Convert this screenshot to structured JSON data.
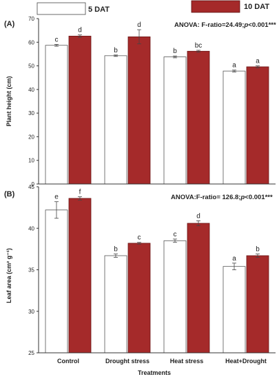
{
  "legend": {
    "items": [
      {
        "label": "5 DAT",
        "color": "#ffffff"
      },
      {
        "label": "10 DAT",
        "color": "#a52a2a"
      }
    ]
  },
  "xlabel": "Treatments",
  "categories": [
    "Control",
    "Drought stress",
    "Heat stress",
    "Heat+Drought"
  ],
  "chart_data": [
    {
      "type": "bar",
      "panel_label": "(A)",
      "ylabel": "Plant height (cm)",
      "ylim": [
        0,
        70
      ],
      "yticks": [
        0,
        10,
        20,
        30,
        40,
        50,
        60,
        70
      ],
      "annotation_prefix": "ANOVA: F-ratio=24.49;",
      "annotation_p": "p",
      "annotation_suffix": "<0.001***",
      "categories": [
        "Control",
        "Drought stress",
        "Heat stress",
        "Heat+Drought"
      ],
      "series": [
        {
          "name": "5 DAT",
          "color": "#ffffff",
          "values": [
            58.7,
            54.3,
            53.8,
            47.8
          ],
          "errors": [
            0.4,
            0.3,
            0.4,
            0.4
          ],
          "letters": [
            "c",
            "b",
            "b",
            "a"
          ]
        },
        {
          "name": "10 DAT",
          "color": "#a52a2a",
          "values": [
            62.6,
            62.3,
            56.2,
            49.6
          ],
          "errors": [
            0.5,
            3.0,
            0.4,
            0.4
          ],
          "letters": [
            "d",
            "d",
            "bc",
            "a"
          ]
        }
      ]
    },
    {
      "type": "bar",
      "panel_label": "(B)",
      "ylabel": "Leaf area (cm² g⁻¹)",
      "ylim": [
        25,
        45
      ],
      "yticks": [
        25,
        30,
        35,
        40,
        45
      ],
      "annotation_prefix": "ANOVA:F-ratio= 126.8;",
      "annotation_p": "p",
      "annotation_suffix": "<0.001***",
      "categories": [
        "Control",
        "Drought stress",
        "Heat stress",
        "Heat+Drought"
      ],
      "series": [
        {
          "name": "5 DAT",
          "color": "#ffffff",
          "values": [
            42.2,
            36.7,
            38.5,
            35.4
          ],
          "errors": [
            1.0,
            0.2,
            0.2,
            0.4
          ],
          "letters": [
            "e",
            "b",
            "c",
            "a"
          ]
        },
        {
          "name": "10 DAT",
          "color": "#a52a2a",
          "values": [
            43.6,
            38.2,
            40.6,
            36.7
          ],
          "errors": [
            0.2,
            0.1,
            0.3,
            0.2
          ],
          "letters": [
            "f",
            "c",
            "d",
            "b"
          ]
        }
      ]
    }
  ]
}
